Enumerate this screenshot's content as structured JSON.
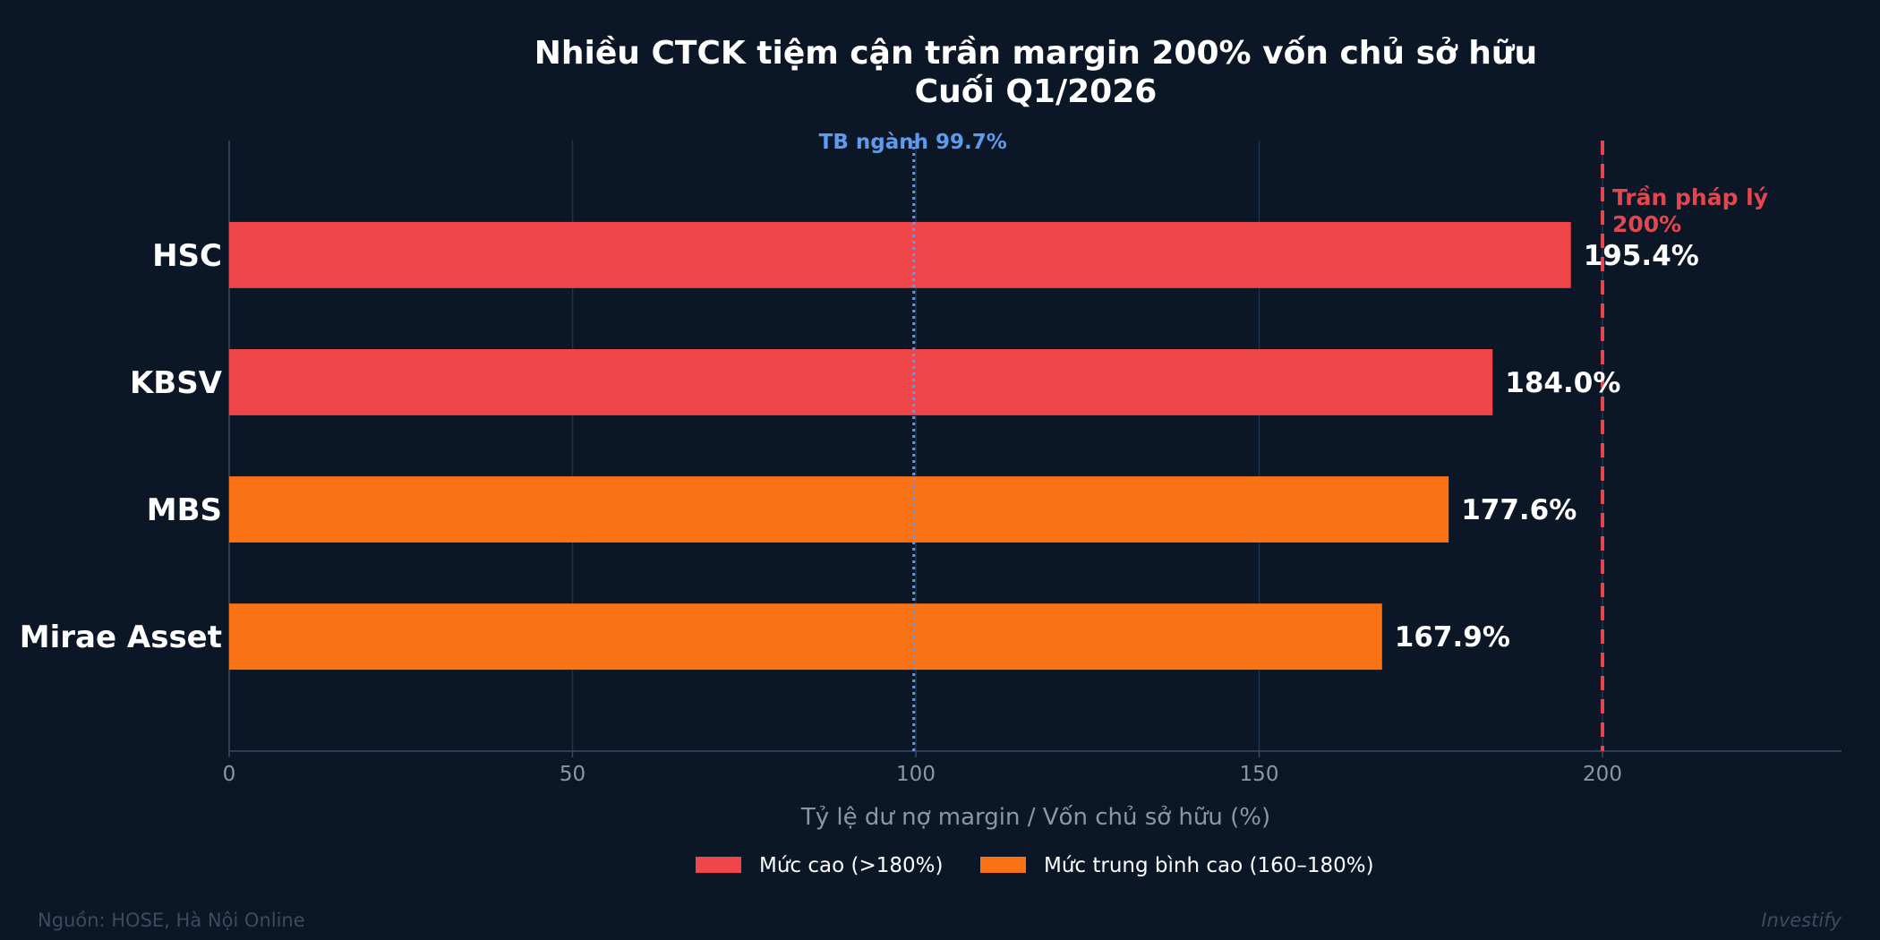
{
  "chart_data": {
    "type": "bar",
    "orientation": "horizontal",
    "title": "Nhiều CTCK tiệm cận trần margin 200% vốn chủ sở hữu",
    "subtitle": "Cuối Q1/2026",
    "categories": [
      "HSC",
      "KBSV",
      "MBS",
      "Mirae Asset"
    ],
    "values": [
      195.4,
      184.0,
      177.6,
      167.9
    ],
    "value_labels": [
      "195.4%",
      "184.0%",
      "177.6%",
      "167.9%"
    ],
    "bar_groups": [
      "high",
      "high",
      "medium-high",
      "medium-high"
    ],
    "xlabel": "Tỷ lệ dư nợ margin / Vốn chủ sở hữu (%)",
    "xlim": [
      0,
      235
    ],
    "xticks": [
      0,
      50,
      100,
      150,
      200
    ],
    "xtick_labels": [
      "0",
      "50",
      "100",
      "150",
      "200"
    ],
    "grid": "vertical",
    "reference_lines": [
      {
        "value": 99.7,
        "label": "TB ngành 99.7%",
        "style": "dotted",
        "color": "#5b9bf0"
      },
      {
        "value": 200,
        "label_line1": "Trần pháp lý",
        "label_line2": "200%",
        "style": "dashed",
        "color": "#e2474f"
      }
    ],
    "legend": {
      "placement": "bottom-center",
      "items": [
        {
          "key": "high",
          "label": "Mức cao (>180%)",
          "color": "#ef4649"
        },
        {
          "key": "medium-high",
          "label": "Mức trung bình cao (160–180%)",
          "color": "#f97316"
        }
      ]
    },
    "colors": {
      "background": "#0b1626",
      "high": "#ef4649",
      "medium-high": "#f97316",
      "grid": "#1e3350",
      "axis": "#3a4a60"
    }
  },
  "footer": {
    "source": "Nguồn: HOSE, Hà Nội Online",
    "brand": "Investify"
  }
}
